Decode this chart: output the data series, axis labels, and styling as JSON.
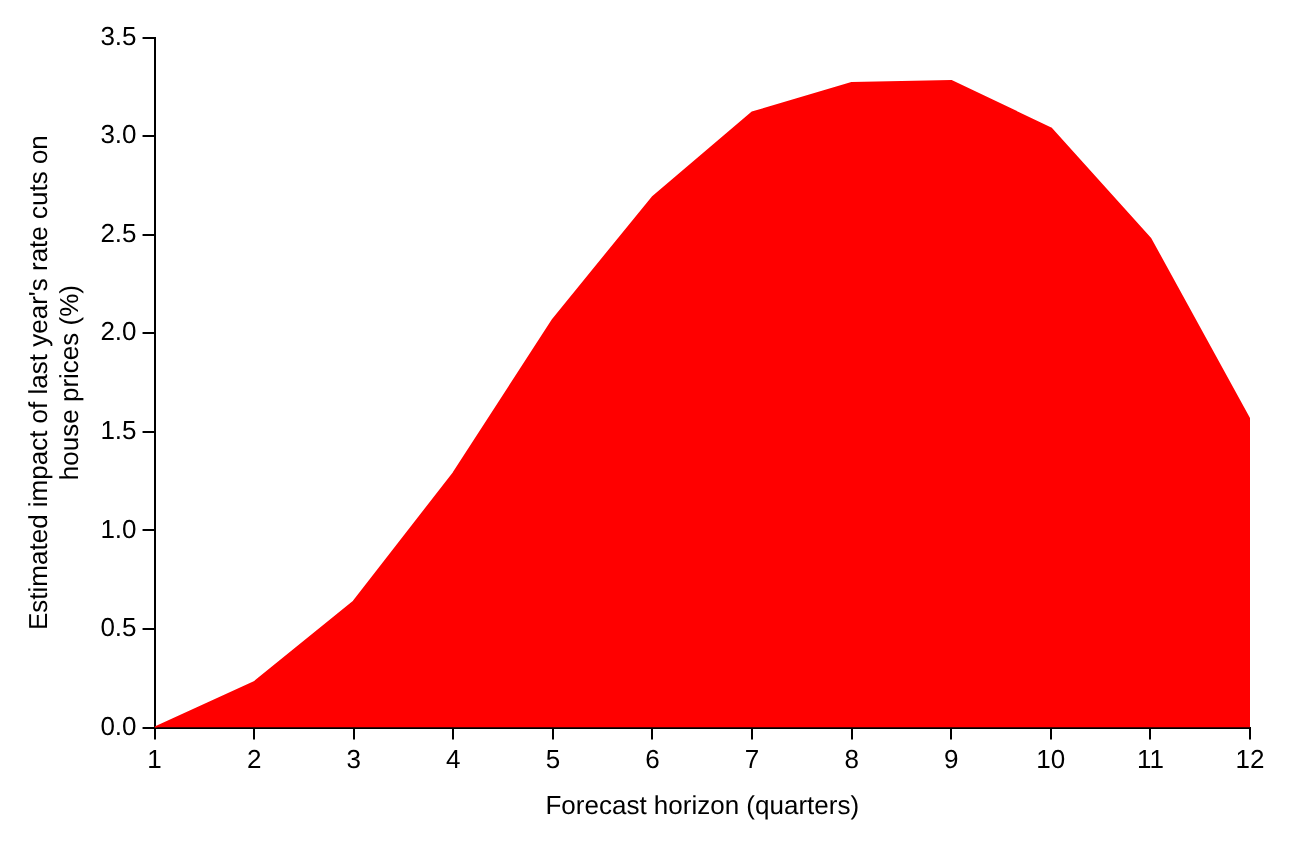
{
  "chart_data": {
    "type": "area",
    "xlabel": "Forecast horizon (quarters)",
    "ylabel": "Estimated impact of last year's rate cuts on house prices (%)",
    "x": [
      1,
      2,
      3,
      4,
      5,
      6,
      7,
      8,
      9,
      10,
      11,
      12
    ],
    "xlim": [
      1,
      12
    ],
    "xticks": [
      1,
      2,
      3,
      4,
      5,
      6,
      7,
      8,
      9,
      10,
      11,
      12
    ],
    "series": [
      {
        "color": "#ff0000",
        "values": [
          0.0,
          0.23,
          0.64,
          1.29,
          2.07,
          2.69,
          3.12,
          3.27,
          3.28,
          3.04,
          2.48,
          1.56
        ]
      }
    ],
    "ylim": [
      0,
      3.5
    ],
    "yticks": [
      {
        "value": 0,
        "label": "0.0"
      },
      {
        "value": 0.5,
        "label": "0.5"
      },
      {
        "value": 1,
        "label": "1.0"
      },
      {
        "value": 1.5,
        "label": "1.5"
      },
      {
        "value": 2,
        "label": "2.0"
      },
      {
        "value": 2.5,
        "label": "2.5"
      },
      {
        "value": 3,
        "label": "3.0"
      },
      {
        "value": 3.5,
        "label": "3.5"
      }
    ],
    "grid": false,
    "legend": false
  }
}
